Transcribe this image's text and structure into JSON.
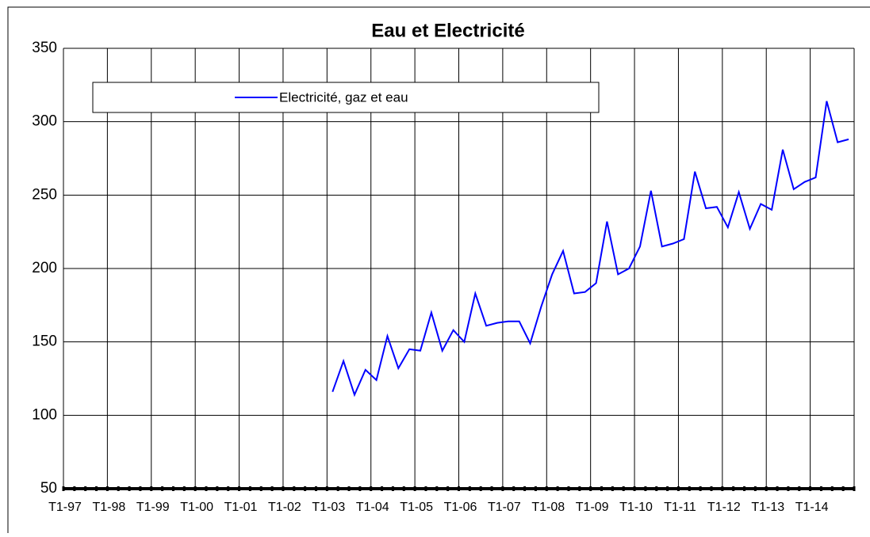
{
  "chart_data": {
    "type": "line",
    "title": "Eau et Electricité",
    "categories": [
      "T1-97",
      null,
      null,
      null,
      "T1-98",
      null,
      null,
      null,
      "T1-99",
      null,
      null,
      null,
      "T1-00",
      null,
      null,
      null,
      "T1-01",
      null,
      null,
      null,
      "T1-02",
      null,
      null,
      null,
      "T1-03",
      null,
      null,
      null,
      "T1-04",
      null,
      null,
      null,
      "T1-05",
      null,
      null,
      null,
      "T1-06",
      null,
      null,
      null,
      "T1-07",
      null,
      null,
      null,
      "T1-08",
      null,
      null,
      null,
      "T1-09",
      null,
      null,
      null,
      "T1-10",
      null,
      null,
      null,
      "T1-11",
      null,
      null,
      null,
      "T1-12",
      null,
      null,
      null,
      "T1-13",
      null,
      null,
      null,
      "T1-14",
      null,
      null,
      null
    ],
    "series": [
      {
        "name": "Electricité, gaz et eau",
        "color": "#0000ff",
        "values": [
          null,
          null,
          null,
          null,
          null,
          null,
          null,
          null,
          null,
          null,
          null,
          null,
          null,
          null,
          null,
          null,
          null,
          null,
          null,
          null,
          null,
          null,
          null,
          null,
          116,
          137,
          114,
          131,
          124,
          154,
          132,
          145,
          144,
          170,
          144,
          158,
          150,
          183,
          161,
          163,
          164,
          164,
          149,
          174,
          196,
          212,
          183,
          184,
          190,
          232,
          196,
          200,
          215,
          253,
          215,
          217,
          220,
          266,
          241,
          242,
          228,
          252,
          227,
          244,
          240,
          281,
          254,
          259,
          262,
          314,
          286,
          288
        ]
      }
    ],
    "ylim": [
      50,
      350
    ],
    "yticks": [
      50,
      100,
      150,
      200,
      250,
      300,
      350
    ],
    "grid": true,
    "legend": "top"
  }
}
